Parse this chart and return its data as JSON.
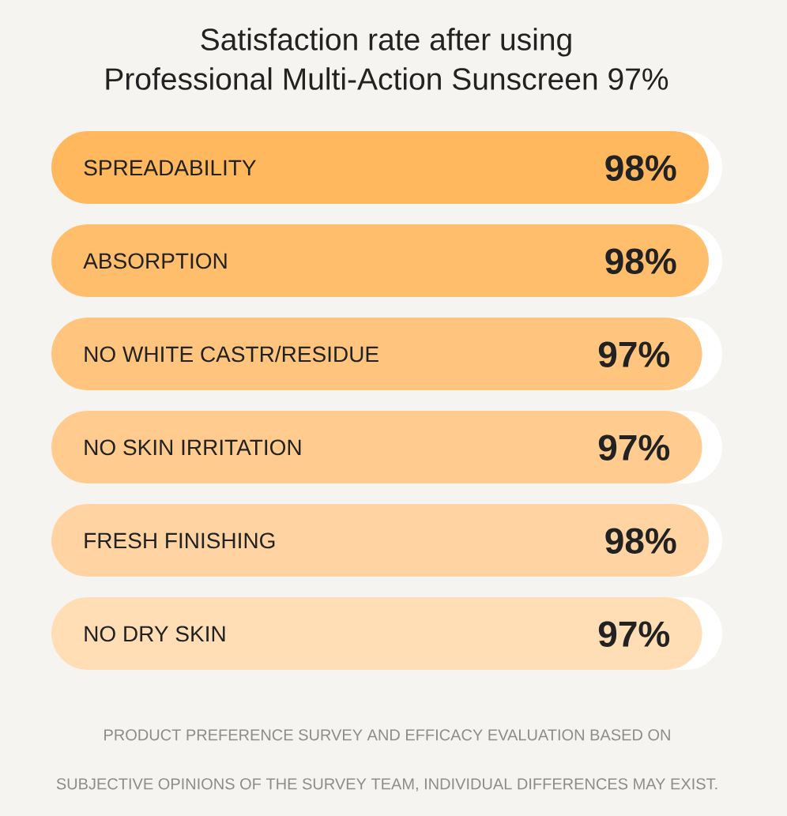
{
  "chart_data": {
    "type": "bar",
    "orientation": "horizontal",
    "title": "Satisfaction rate after using Professional Multi-Action Sunscreen 97%",
    "categories": [
      "SPREADABILITY",
      "ABSORPTION",
      "NO WHITE CASTR/RESIDUE",
      "NO SKIN IRRITATION",
      "FRESH FINISHING",
      "NO DRY SKIN"
    ],
    "values": [
      98,
      98,
      97,
      97,
      98,
      97
    ],
    "colors": [
      "#ffb85e",
      "#ffbe6c",
      "#ffc57e",
      "#ffcb8e",
      "#ffd4a2",
      "#ffddb5"
    ],
    "value_labels": [
      "98%",
      "98%",
      "97%",
      "97%",
      "98%",
      "97%"
    ],
    "xlim": [
      0,
      100
    ],
    "tick_labels": "y",
    "annotations": [
      "PRODUCT PREFERENCE SURVEY AND EFFICACY EVALUATION BASED ON SUBJECTIVE OPINIONS OF THE SURVEY TEAM, INDIVIDUAL DIFFERENCES MAY EXIST."
    ]
  }
}
